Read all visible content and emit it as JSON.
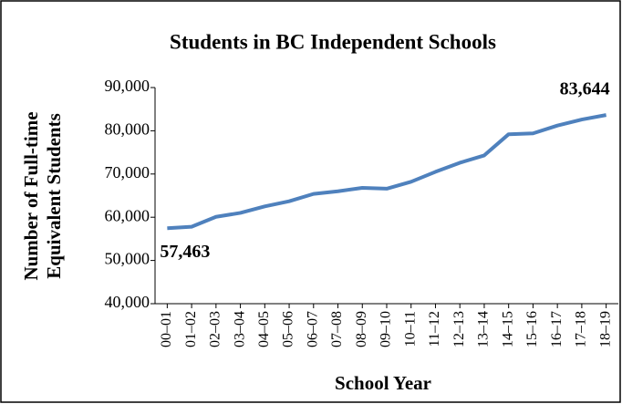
{
  "chart_data": {
    "type": "line",
    "title": "Students in BC Independent Schools",
    "x_label": "School Year",
    "y_label": [
      "Number of Full-time",
      "Equivalent Students"
    ],
    "categories": [
      "00–01",
      "01–02",
      "02–03",
      "03–04",
      "04–05",
      "05–06",
      "06–07",
      "07–08",
      "08–09",
      "09–10",
      "10–11",
      "11–12",
      "12–13",
      "13–14",
      "14–15",
      "15–16",
      "16–17",
      "17–18",
      "18–19"
    ],
    "values": [
      57463,
      57800,
      60100,
      61000,
      62500,
      63700,
      65400,
      66000,
      66800,
      66600,
      68200,
      70500,
      72600,
      74300,
      79200,
      79400,
      81200,
      82600,
      83644
    ],
    "value_labels": [
      "57,463",
      null,
      null,
      null,
      null,
      null,
      null,
      null,
      null,
      null,
      null,
      null,
      null,
      null,
      null,
      null,
      null,
      null,
      "83,644"
    ],
    "color": "#4f81bd",
    "ylim": [
      40000,
      90000
    ],
    "yticks": [
      {
        "value": 40000,
        "label": "40,000"
      },
      {
        "value": 50000,
        "label": "50,000"
      },
      {
        "value": 60000,
        "label": "60,000"
      },
      {
        "value": 70000,
        "label": "70,000"
      },
      {
        "value": 80000,
        "label": "80,000"
      },
      {
        "value": 90000,
        "label": "90,000"
      }
    ],
    "grid": false
  }
}
